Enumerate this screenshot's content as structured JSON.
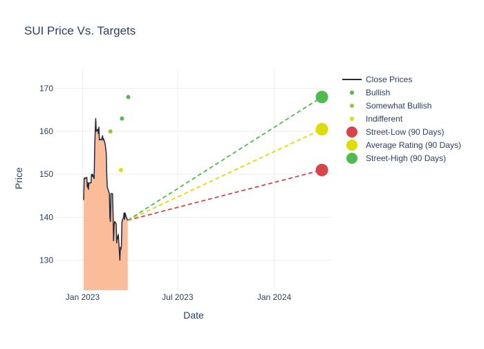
{
  "chart_data": {
    "type": "line",
    "title": "SUI Price Vs. Targets",
    "xlabel": "Date",
    "ylabel": "Price",
    "xlim": [
      "2022-11-10",
      "2024-04-20"
    ],
    "ylim": [
      123,
      174.5
    ],
    "grid": true,
    "legend_position": "right",
    "x_ticks": [
      {
        "value": "2023-01-01",
        "label": "Jan 2023"
      },
      {
        "value": "2023-07-01",
        "label": "Jul 2023"
      },
      {
        "value": "2024-01-01",
        "label": "Jan 2024"
      }
    ],
    "y_ticks": [
      130,
      140,
      150,
      160,
      170
    ],
    "close_prices": {
      "name": "Close Prices",
      "color": "#1f2a3a",
      "fill_color": "#fbbc99",
      "points": [
        [
          "2023-01-03",
          144
        ],
        [
          "2023-01-04",
          149
        ],
        [
          "2023-01-05",
          149.2
        ],
        [
          "2023-01-06",
          149
        ],
        [
          "2023-01-09",
          149.3
        ],
        [
          "2023-01-10",
          147
        ],
        [
          "2023-01-11",
          148
        ],
        [
          "2023-01-12",
          146.5
        ],
        [
          "2023-01-13",
          148
        ],
        [
          "2023-01-17",
          148
        ],
        [
          "2023-01-18",
          150
        ],
        [
          "2023-01-19",
          149.5
        ],
        [
          "2023-01-20",
          150
        ],
        [
          "2023-01-23",
          149
        ],
        [
          "2023-01-24",
          156
        ],
        [
          "2023-01-25",
          160
        ],
        [
          "2023-01-26",
          163
        ],
        [
          "2023-01-27",
          160
        ],
        [
          "2023-01-30",
          160.5
        ],
        [
          "2023-01-31",
          159.5
        ],
        [
          "2023-02-01",
          161
        ],
        [
          "2023-02-02",
          158
        ],
        [
          "2023-02-03",
          158.2
        ],
        [
          "2023-02-06",
          158
        ],
        [
          "2023-02-07",
          158.5
        ],
        [
          "2023-02-08",
          159
        ],
        [
          "2023-02-09",
          158
        ],
        [
          "2023-02-10",
          158.3
        ],
        [
          "2023-02-13",
          157
        ],
        [
          "2023-02-14",
          156
        ],
        [
          "2023-02-15",
          155
        ],
        [
          "2023-02-16",
          150
        ],
        [
          "2023-02-17",
          147
        ],
        [
          "2023-02-21",
          145.5
        ],
        [
          "2023-02-22",
          140
        ],
        [
          "2023-02-23",
          139
        ],
        [
          "2023-02-24",
          145.5
        ],
        [
          "2023-02-27",
          145.5
        ],
        [
          "2023-02-28",
          141
        ],
        [
          "2023-03-01",
          134.5
        ],
        [
          "2023-03-02",
          138
        ],
        [
          "2023-03-03",
          139
        ],
        [
          "2023-03-06",
          138.5
        ],
        [
          "2023-03-07",
          134
        ],
        [
          "2023-03-08",
          135.5
        ],
        [
          "2023-03-09",
          135
        ],
        [
          "2023-03-10",
          136
        ],
        [
          "2023-03-13",
          130
        ],
        [
          "2023-03-14",
          133
        ],
        [
          "2023-03-15",
          132.5
        ],
        [
          "2023-03-16",
          133.5
        ],
        [
          "2023-03-17",
          139
        ],
        [
          "2023-03-20",
          140
        ],
        [
          "2023-03-21",
          141
        ],
        [
          "2023-03-22",
          139.5
        ],
        [
          "2023-03-23",
          141
        ],
        [
          "2023-03-24",
          140.5
        ],
        [
          "2023-03-27",
          139.5
        ],
        [
          "2023-03-28",
          139.3
        ]
      ]
    },
    "analyst_ratings": [
      {
        "name": "Bullish",
        "color": "#4dbb4d",
        "points": [
          [
            "2023-03-17",
            163
          ],
          [
            "2023-03-29",
            168
          ]
        ]
      },
      {
        "name": "Somewhat Bullish",
        "color": "#8ecb2e",
        "points": [
          [
            "2023-02-23",
            160
          ]
        ]
      },
      {
        "name": "Indifferent",
        "color": "#dddd00",
        "points": [
          [
            "2023-03-15",
            151
          ]
        ]
      }
    ],
    "targets": {
      "start": [
        "2023-03-28",
        139.3
      ],
      "date": "2024-04-01",
      "lines": [
        {
          "name": "Street-Low (90 Days)",
          "value": 151,
          "color": "#d9434a"
        },
        {
          "name": "Average Rating (90 Days)",
          "value": 160.5,
          "color": "#dddd00"
        },
        {
          "name": "Street-High (90 Days)",
          "value": 168,
          "color": "#4dbb4d"
        }
      ]
    },
    "legend": [
      {
        "name": "Close Prices",
        "kind": "line",
        "color": "#1f2a3a"
      },
      {
        "name": "Bullish",
        "kind": "dot",
        "color": "#4dbb4d"
      },
      {
        "name": "Somewhat Bullish",
        "kind": "dot",
        "color": "#8ecb2e"
      },
      {
        "name": "Indifferent",
        "kind": "dot",
        "color": "#dddd00"
      },
      {
        "name": "Street-Low (90 Days)",
        "kind": "bigdot",
        "color": "#d9434a"
      },
      {
        "name": "Average Rating (90 Days)",
        "kind": "bigdot",
        "color": "#dddd00"
      },
      {
        "name": "Street-High (90 Days)",
        "kind": "bigdot",
        "color": "#4dbb4d"
      }
    ]
  }
}
